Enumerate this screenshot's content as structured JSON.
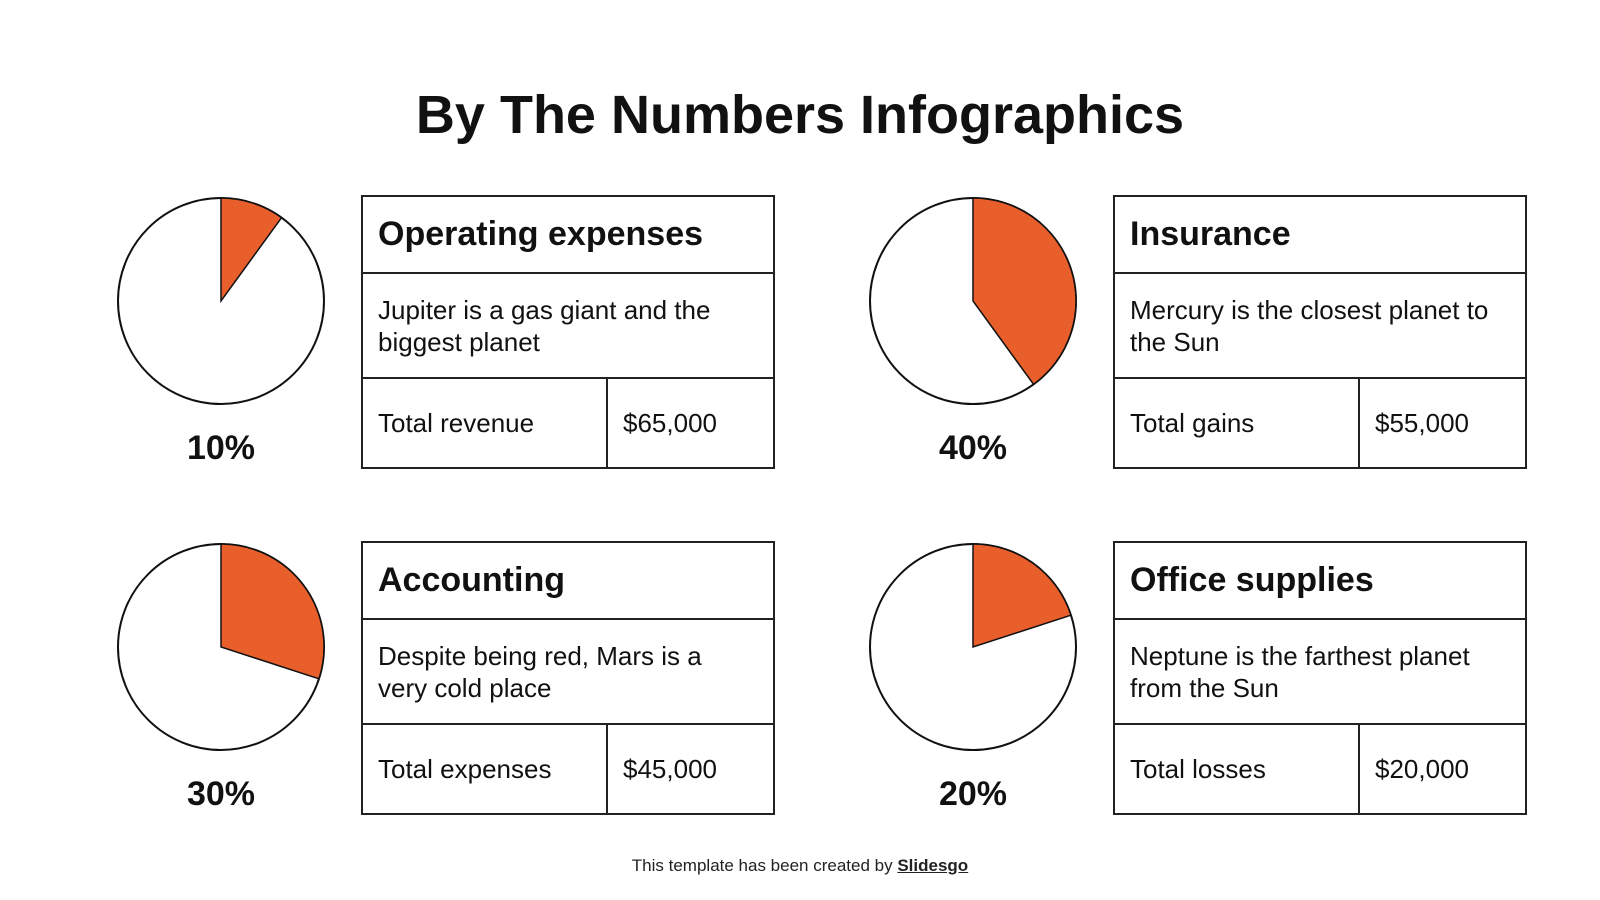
{
  "title": "By The Numbers Infographics",
  "chart_data": [
    {
      "type": "pie",
      "values": [
        10
      ],
      "value_labels": [
        "10%"
      ],
      "color": "#e95f2b"
    },
    {
      "type": "pie",
      "values": [
        40
      ],
      "value_labels": [
        "40%"
      ],
      "color": "#e95f2b"
    },
    {
      "type": "pie",
      "values": [
        30
      ],
      "value_labels": [
        "30%"
      ],
      "color": "#e95f2b"
    },
    {
      "type": "pie",
      "values": [
        20
      ],
      "value_labels": [
        "20%"
      ],
      "color": "#e95f2b"
    }
  ],
  "cards": [
    {
      "heading": "Operating expenses",
      "text": "Jupiter is a gas giant and the biggest planet",
      "label": "Total revenue",
      "amount": "$65,000"
    },
    {
      "heading": "Insurance",
      "text": "Mercury is the closest planet to the Sun",
      "label": "Total gains",
      "amount": "$55,000"
    },
    {
      "heading": "Accounting",
      "text": "Despite being red, Mars is a very cold place",
      "label": "Total expenses",
      "amount": "$45,000"
    },
    {
      "heading": "Office supplies",
      "text": "Neptune is the farthest planet from the Sun",
      "label": "Total losses",
      "amount": "$20,000"
    }
  ],
  "footer": {
    "text": "This template has been created by",
    "link": "Slidesgo"
  }
}
